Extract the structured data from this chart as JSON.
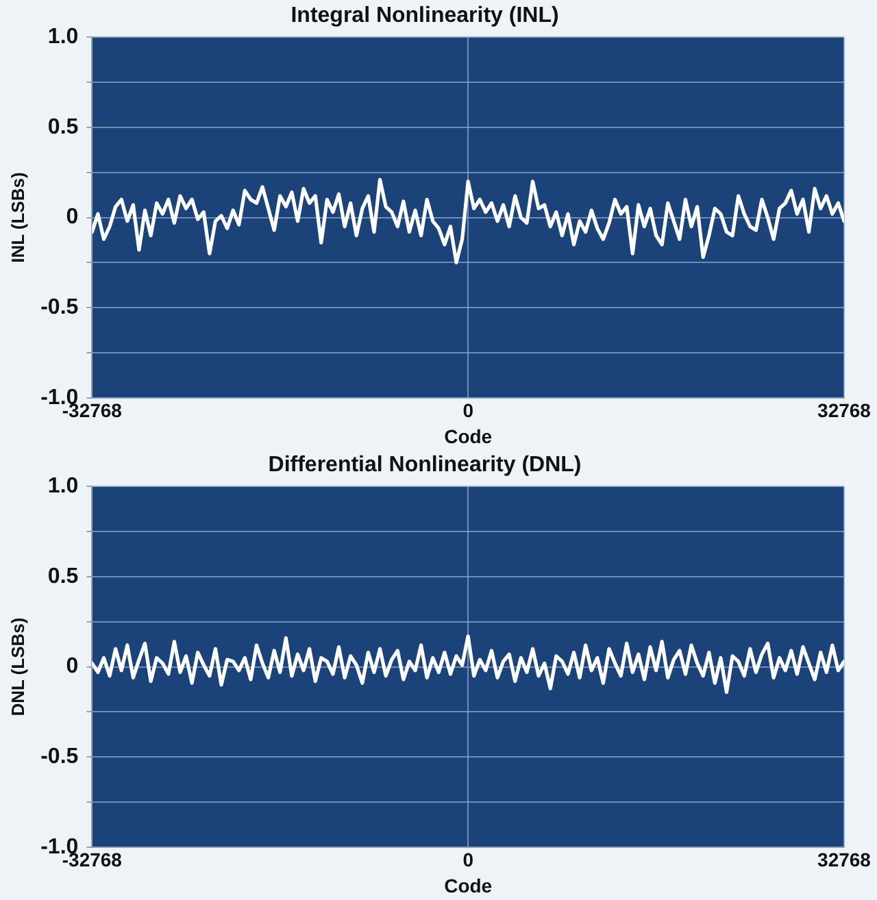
{
  "chart_data": [
    {
      "type": "line",
      "title": "Integral Nonlinearity (INL)",
      "xlabel": "Code",
      "ylabel": "INL (LSBs)",
      "x": [
        -32768,
        -32256,
        -31744,
        -31232,
        -30720,
        -30208,
        -29696,
        -29184,
        -28672,
        -28160,
        -27648,
        -27136,
        -26624,
        -26112,
        -25600,
        -25088,
        -24576,
        -24064,
        -23552,
        -23040,
        -22528,
        -22016,
        -21504,
        -20992,
        -20480,
        -19968,
        -19456,
        -18944,
        -18432,
        -17920,
        -17408,
        -16896,
        -16384,
        -15872,
        -15360,
        -14848,
        -14336,
        -13824,
        -13312,
        -12800,
        -12288,
        -11776,
        -11264,
        -10752,
        -10240,
        -9728,
        -9216,
        -8704,
        -8192,
        -7680,
        -7168,
        -6656,
        -6144,
        -5632,
        -5120,
        -4608,
        -4096,
        -3584,
        -3072,
        -2560,
        -2048,
        -1536,
        -1024,
        -512,
        0,
        512,
        1024,
        1536,
        2048,
        2560,
        3072,
        3584,
        4096,
        4608,
        5120,
        5632,
        6144,
        6656,
        7168,
        7680,
        8192,
        8704,
        9216,
        9728,
        10240,
        10752,
        11264,
        11776,
        12288,
        12800,
        13312,
        13824,
        14336,
        14848,
        15360,
        15872,
        16384,
        16896,
        17408,
        17920,
        18432,
        18944,
        19456,
        19968,
        20480,
        20992,
        21504,
        22016,
        22528,
        23040,
        23552,
        24064,
        24576,
        25088,
        25600,
        26112,
        26624,
        27136,
        27648,
        28160,
        28672,
        29184,
        29696,
        30208,
        30720,
        31232,
        31744,
        32256,
        32768
      ],
      "series": [
        {
          "color": "#ffffff",
          "values": [
            -0.08,
            0.02,
            -0.12,
            -0.05,
            0.06,
            0.1,
            -0.02,
            0.07,
            -0.18,
            0.04,
            -0.1,
            0.08,
            0.02,
            0.1,
            -0.03,
            0.12,
            0.05,
            0.1,
            -0.01,
            0.03,
            -0.2,
            -0.02,
            0.01,
            -0.06,
            0.04,
            -0.04,
            0.15,
            0.1,
            0.08,
            0.17,
            0.05,
            -0.07,
            0.12,
            0.06,
            0.14,
            -0.02,
            0.16,
            0.08,
            0.12,
            -0.14,
            0.1,
            0.03,
            0.13,
            -0.05,
            0.08,
            -0.1,
            0.05,
            0.12,
            -0.08,
            0.21,
            0.06,
            0.03,
            -0.05,
            0.09,
            -0.08,
            0.04,
            -0.1,
            0.1,
            -0.02,
            -0.06,
            -0.15,
            -0.05,
            -0.25,
            -0.12,
            0.2,
            0.05,
            0.1,
            0.03,
            0.08,
            -0.02,
            0.07,
            -0.05,
            0.12,
            0,
            -0.03,
            0.2,
            0.05,
            0.07,
            -0.05,
            0.03,
            -0.1,
            0.02,
            -0.15,
            -0.02,
            -0.08,
            0.04,
            -0.06,
            -0.12,
            -0.03,
            0.1,
            0.02,
            0.06,
            -0.2,
            0.07,
            -0.05,
            0.05,
            -0.1,
            -0.15,
            0.08,
            -0.02,
            -0.12,
            0.1,
            -0.05,
            0.06,
            -0.22,
            -0.1,
            0.05,
            0.02,
            -0.08,
            -0.1,
            0.12,
            0.02,
            -0.05,
            -0.07,
            0.1,
            0,
            -0.12,
            0.05,
            0.08,
            0.15,
            0.02,
            0.1,
            -0.08,
            0.16,
            0.05,
            0.12,
            0.02,
            0.08,
            -0.02
          ]
        }
      ],
      "xlim": [
        -32768,
        32768
      ],
      "xticks": [
        -32768,
        0,
        32768
      ],
      "ylim": [
        -1.0,
        1.0
      ],
      "yticks": [
        {
          "value": -1.0,
          "label": "-1.0"
        },
        {
          "value": -0.75,
          "label": null
        },
        {
          "value": -0.5,
          "label": "-0.5"
        },
        {
          "value": -0.25,
          "label": null
        },
        0,
        {
          "value": 0.25,
          "label": null
        },
        {
          "value": 0.5,
          "label": "0.5"
        },
        {
          "value": 0.75,
          "label": null
        },
        {
          "value": 1.0,
          "label": "1.0"
        }
      ],
      "grid": true,
      "legend": false,
      "marker": "none",
      "line_style": "solid"
    },
    {
      "type": "line",
      "title": "Differential Nonlinearity (DNL)",
      "xlabel": "Code",
      "ylabel": "DNL (LSBs)",
      "x": [
        -32768,
        -32256,
        -31744,
        -31232,
        -30720,
        -30208,
        -29696,
        -29184,
        -28672,
        -28160,
        -27648,
        -27136,
        -26624,
        -26112,
        -25600,
        -25088,
        -24576,
        -24064,
        -23552,
        -23040,
        -22528,
        -22016,
        -21504,
        -20992,
        -20480,
        -19968,
        -19456,
        -18944,
        -18432,
        -17920,
        -17408,
        -16896,
        -16384,
        -15872,
        -15360,
        -14848,
        -14336,
        -13824,
        -13312,
        -12800,
        -12288,
        -11776,
        -11264,
        -10752,
        -10240,
        -9728,
        -9216,
        -8704,
        -8192,
        -7680,
        -7168,
        -6656,
        -6144,
        -5632,
        -5120,
        -4608,
        -4096,
        -3584,
        -3072,
        -2560,
        -2048,
        -1536,
        -1024,
        -512,
        0,
        512,
        1024,
        1536,
        2048,
        2560,
        3072,
        3584,
        4096,
        4608,
        5120,
        5632,
        6144,
        6656,
        7168,
        7680,
        8192,
        8704,
        9216,
        9728,
        10240,
        10752,
        11264,
        11776,
        12288,
        12800,
        13312,
        13824,
        14336,
        14848,
        15360,
        15872,
        16384,
        16896,
        17408,
        17920,
        18432,
        18944,
        19456,
        19968,
        20480,
        20992,
        21504,
        22016,
        22528,
        23040,
        23552,
        24064,
        24576,
        25088,
        25600,
        26112,
        26624,
        27136,
        27648,
        28160,
        28672,
        29184,
        29696,
        30208,
        30720,
        31232,
        31744,
        32256,
        32768
      ],
      "series": [
        {
          "color": "#ffffff",
          "values": [
            0.02,
            -0.03,
            0.05,
            -0.05,
            0.1,
            -0.02,
            0.12,
            -0.06,
            0.04,
            0.13,
            -0.08,
            0.05,
            0.02,
            -0.04,
            0.14,
            -0.03,
            0.06,
            -0.09,
            0.08,
            0.01,
            -0.05,
            0.1,
            -0.1,
            0.04,
            0.03,
            -0.02,
            0.05,
            -0.07,
            0.12,
            0.02,
            -0.06,
            0.09,
            -0.03,
            0.16,
            -0.05,
            0.07,
            -0.02,
            0.1,
            -0.08,
            0.05,
            0.03,
            -0.04,
            0.11,
            -0.06,
            0.06,
            0.01,
            -0.09,
            0.08,
            -0.03,
            0.1,
            -0.05,
            0.04,
            0.09,
            -0.07,
            0.03,
            -0.02,
            0.12,
            -0.06,
            0.05,
            -0.03,
            0.08,
            -0.04,
            0.06,
            0.01,
            0.17,
            -0.05,
            0.04,
            -0.02,
            0.09,
            -0.06,
            0.03,
            0.07,
            -0.08,
            0.05,
            -0.03,
            0.1,
            -0.05,
            0.02,
            -0.12,
            0.06,
            0.03,
            -0.04,
            0.08,
            -0.06,
            0.12,
            -0.02,
            0.05,
            -0.09,
            0.1,
            0.02,
            -0.05,
            0.13,
            -0.03,
            0.07,
            -0.07,
            0.11,
            -0.02,
            0.14,
            -0.06,
            0.04,
            0.09,
            -0.04,
            0.12,
            0.02,
            -0.05,
            0.08,
            -0.09,
            0.05,
            -0.14,
            0.06,
            0.03,
            -0.05,
            0.1,
            -0.03,
            0.07,
            0.13,
            -0.06,
            0.05,
            -0.02,
            0.09,
            -0.04,
            0.11,
            0.02,
            -0.07,
            0.08,
            -0.03,
            0.12,
            -0.02,
            0.03
          ]
        }
      ],
      "xlim": [
        -32768,
        32768
      ],
      "xticks": [
        -32768,
        0,
        32768
      ],
      "ylim": [
        -1.0,
        1.0
      ],
      "yticks": [
        {
          "value": -1.0,
          "label": "-1.0"
        },
        {
          "value": -0.75,
          "label": null
        },
        {
          "value": -0.5,
          "label": "-0.5"
        },
        {
          "value": -0.25,
          "label": null
        },
        0,
        {
          "value": 0.25,
          "label": null
        },
        {
          "value": 0.5,
          "label": "0.5"
        },
        {
          "value": 0.75,
          "label": null
        },
        {
          "value": 1.0,
          "label": "1.0"
        }
      ],
      "grid": true,
      "legend": false,
      "marker": "none",
      "line_style": "solid"
    }
  ]
}
